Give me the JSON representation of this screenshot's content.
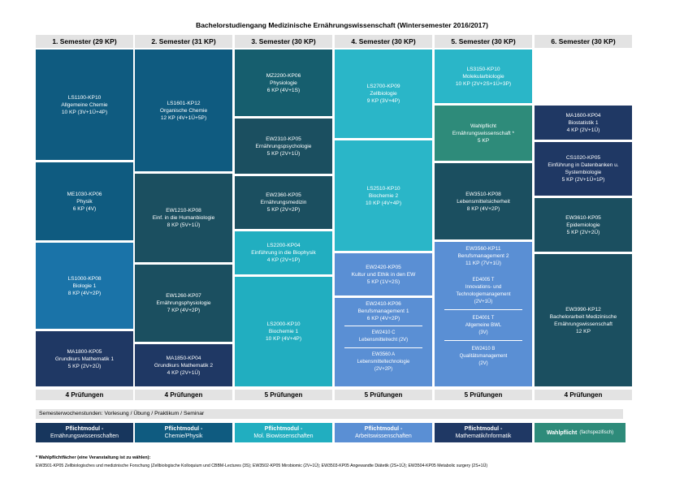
{
  "title": "Bachelorstudiengang Medizinische Ernährungswissenschaft (Wintersemester 2016/2017)",
  "semesters": [
    {
      "header": "1. Semester (29 KP)",
      "exams": "4 Prüfungen",
      "modules": [
        {
          "lines": [
            "LS1100-KP10",
            "Allgemeine Chemie",
            "10 KP (3V+1Ü+4P)"
          ]
        },
        {
          "lines": [
            "ME1030-KP06",
            "Physik",
            "6 KP (4V)"
          ]
        },
        {
          "lines": [
            "LS1000-KP08",
            "Biologie 1",
            "8 KP (4V+2P)"
          ]
        },
        {
          "lines": [
            "MA1800-KP05",
            "Grundkurs Mathematik 1",
            "5 KP (2V+2Ü)"
          ]
        }
      ]
    },
    {
      "header": "2. Semester (31 KP)",
      "exams": "4 Prüfungen",
      "modules": [
        {
          "lines": [
            "LS1601-KP12",
            "Organische Chemie",
            "12 KP (4V+1Ü+5P)"
          ]
        },
        {
          "lines": [
            "EW1210-KP08",
            "Einf. in die Humanbiologie",
            "8 KP (5V+1Ü)"
          ]
        },
        {
          "lines": [
            "EW1260-KP07",
            "Ernährungsphysiologie",
            "7 KP (4V+2P)"
          ]
        },
        {
          "lines": [
            "MA1850-KP04",
            "Grundkurs Mathematik 2",
            "4 KP (2V+1Ü)"
          ]
        }
      ]
    },
    {
      "header": "3. Semester (30 KP)",
      "exams": "5 Prüfungen",
      "modules": [
        {
          "lines": [
            "MZ2200-KP06",
            "Physiologie",
            "6 KP (4V+1S)"
          ]
        },
        {
          "lines": [
            "EW2310-KP05",
            "Ernährungspsychologie",
            "5 KP (2V+1Ü)"
          ]
        },
        {
          "lines": [
            "EW2360-KP05",
            "Ernährungsmedizin",
            "5 KP (2V+2P)"
          ]
        },
        {
          "lines": [
            "LS2200-KP04",
            "Einführung in die Biophysik",
            "4 KP (2V+1P)"
          ]
        },
        {
          "lines": [
            "LS2000-KP10",
            "Biochemie 1",
            "10 KP (4V+4P)"
          ]
        }
      ]
    },
    {
      "header": "4. Semester (30 KP)",
      "exams": "5 Prüfungen",
      "modules": [
        {
          "lines": [
            "LS2700-KP09",
            "Zellbiologie",
            "9 KP (3V+4P)"
          ]
        },
        {
          "lines": [
            "LS2510-KP10",
            "Biochemie 2",
            "10 KP (4V+4P)"
          ]
        },
        {
          "lines": [
            "EW2420-KP05",
            "Kultur und Ethik in den EW",
            "5 KP (1V+2S)"
          ]
        },
        {
          "lines": [
            "EW2410-KP06",
            "Berufsmanagement 1",
            "6 KP (4V+2P)"
          ]
        },
        {
          "lines": [
            "EW2410 C",
            "Lebensmittelrecht (2V)"
          ]
        },
        {
          "lines": [
            "EW3560 A",
            "Lebensmitteltechnologie",
            "(2V+2P)"
          ]
        }
      ]
    },
    {
      "header": "5. Semester (30 KP)",
      "exams": "5 Prüfungen",
      "modules": [
        {
          "lines": [
            "LS3150-KP10",
            "Molekularbiologie",
            "10 KP (2V+2S+1Ü+3P)"
          ]
        },
        {
          "lines": [
            "Wahlpflicht",
            "Ernährungswissenschaft *",
            "5 KP"
          ]
        },
        {
          "lines": [
            "EW3510-KP08",
            "Lebensmittelsicherheit",
            "8 KP (4V+2P)"
          ]
        },
        {
          "lines": [
            "EW3560-KP11",
            "Berufsmanagement 2",
            "11 KP (7V+1Ü)"
          ]
        },
        {
          "lines": [
            "ED4005 T",
            "Innovations- und",
            "Technologiemanagement",
            "(2V+1Ü)"
          ]
        },
        {
          "lines": [
            "ED4001 T",
            "Allgemeine BWL",
            "(3V)"
          ]
        },
        {
          "lines": [
            "EW2410 B",
            "Qualitätsmanagement",
            "(2V)"
          ]
        }
      ]
    },
    {
      "header": "6. Semester (30 KP)",
      "exams": "4 Prüfungen",
      "modules": [
        {
          "lines": [
            "MA1600-KP04",
            "Biostatistik 1",
            "4 KP (2V+1Ü)"
          ]
        },
        {
          "lines": [
            "CS1020-KP05",
            "Einführung in Datenbanken u.",
            "Systembiologie",
            "5 KP (2V+1Ü+1P)"
          ]
        },
        {
          "lines": [
            "EW3610-KP05",
            "Epidemiologie",
            "5 KP (2V+2Ü)"
          ]
        },
        {
          "lines": [
            "EW3990-KP12",
            "Bachelorarbeit Medizinische",
            "Ernährungswissenschaft",
            "12 KP"
          ]
        }
      ]
    }
  ],
  "sws_legend": "Semesterwochenstunden:  Vorlesung / Übung / Praktikum / Seminar",
  "legend": [
    {
      "bold": "Pflichtmodul -",
      "text": "Ernährungswissenschaften",
      "color": "#17365d"
    },
    {
      "bold": "Pflichtmodul -",
      "text": "Chemie/Physik",
      "color": "#0f5b80"
    },
    {
      "bold": "Pflichtmodul -",
      "text": "Mol. Biowissenschaften",
      "color": "#21aec0"
    },
    {
      "bold": "Pflichtmodul -",
      "text": "Arbeitswissenschaften",
      "color": "#5a8fd4"
    },
    {
      "bold": "Pflichtmodul -",
      "text": "Mathematik/Informatik",
      "color": "#1f3864"
    },
    {
      "bold": "Wahlpflicht",
      "text": "(fachspezifisch)",
      "color": "#2e8b7a"
    }
  ],
  "footnote_title": "* Wahlpflichtfächer (eine Veranstaltung ist zu wählen):",
  "footnote_text": "EW3501-KP05 Zellbiologisches und medizinische Forschung (Zellbiologische Kolloquium und CBBM-Lectures (3S); EW3502-KP05 Mirobiomic (2V+1Ü); EW3503-KP05 Angewandte Diätetik (2S+1Ü); EW3504-KP05 Metabolic surgery (2S+1Ü)"
}
